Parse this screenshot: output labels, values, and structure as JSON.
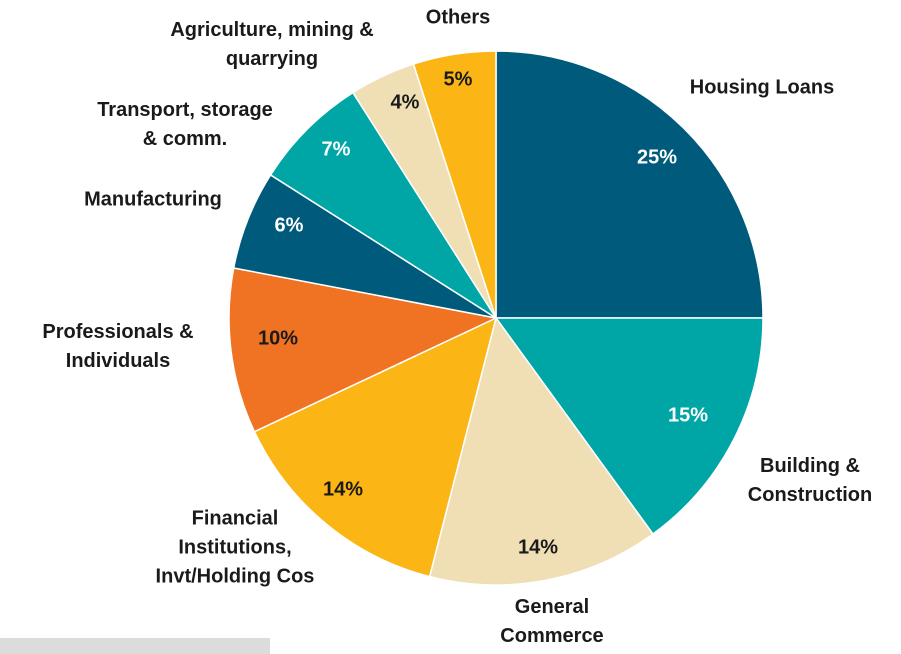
{
  "chart_data": {
    "type": "pie",
    "categories": [
      "Housing Loans",
      "Building &\nConstruction",
      "General\nCommerce",
      "Financial\nInstitutions,\nInvt/Holding Cos",
      "Professionals &\nIndividuals",
      "Manufacturing",
      "Transport, storage\n& comm.",
      "Agriculture, mining &\nquarrying",
      "Others"
    ],
    "values": [
      25,
      15,
      14,
      14,
      10,
      6,
      7,
      4,
      5
    ],
    "value_labels": [
      "25%",
      "15%",
      "14%",
      "14%",
      "10%",
      "6%",
      "7%",
      "4%",
      "5%"
    ],
    "colors": [
      "#005a7c",
      "#00a6a6",
      "#f0dfb5",
      "#fbb514",
      "#f07223",
      "#005a7c",
      "#00a6a6",
      "#f0dfb5",
      "#fbb514"
    ]
  }
}
